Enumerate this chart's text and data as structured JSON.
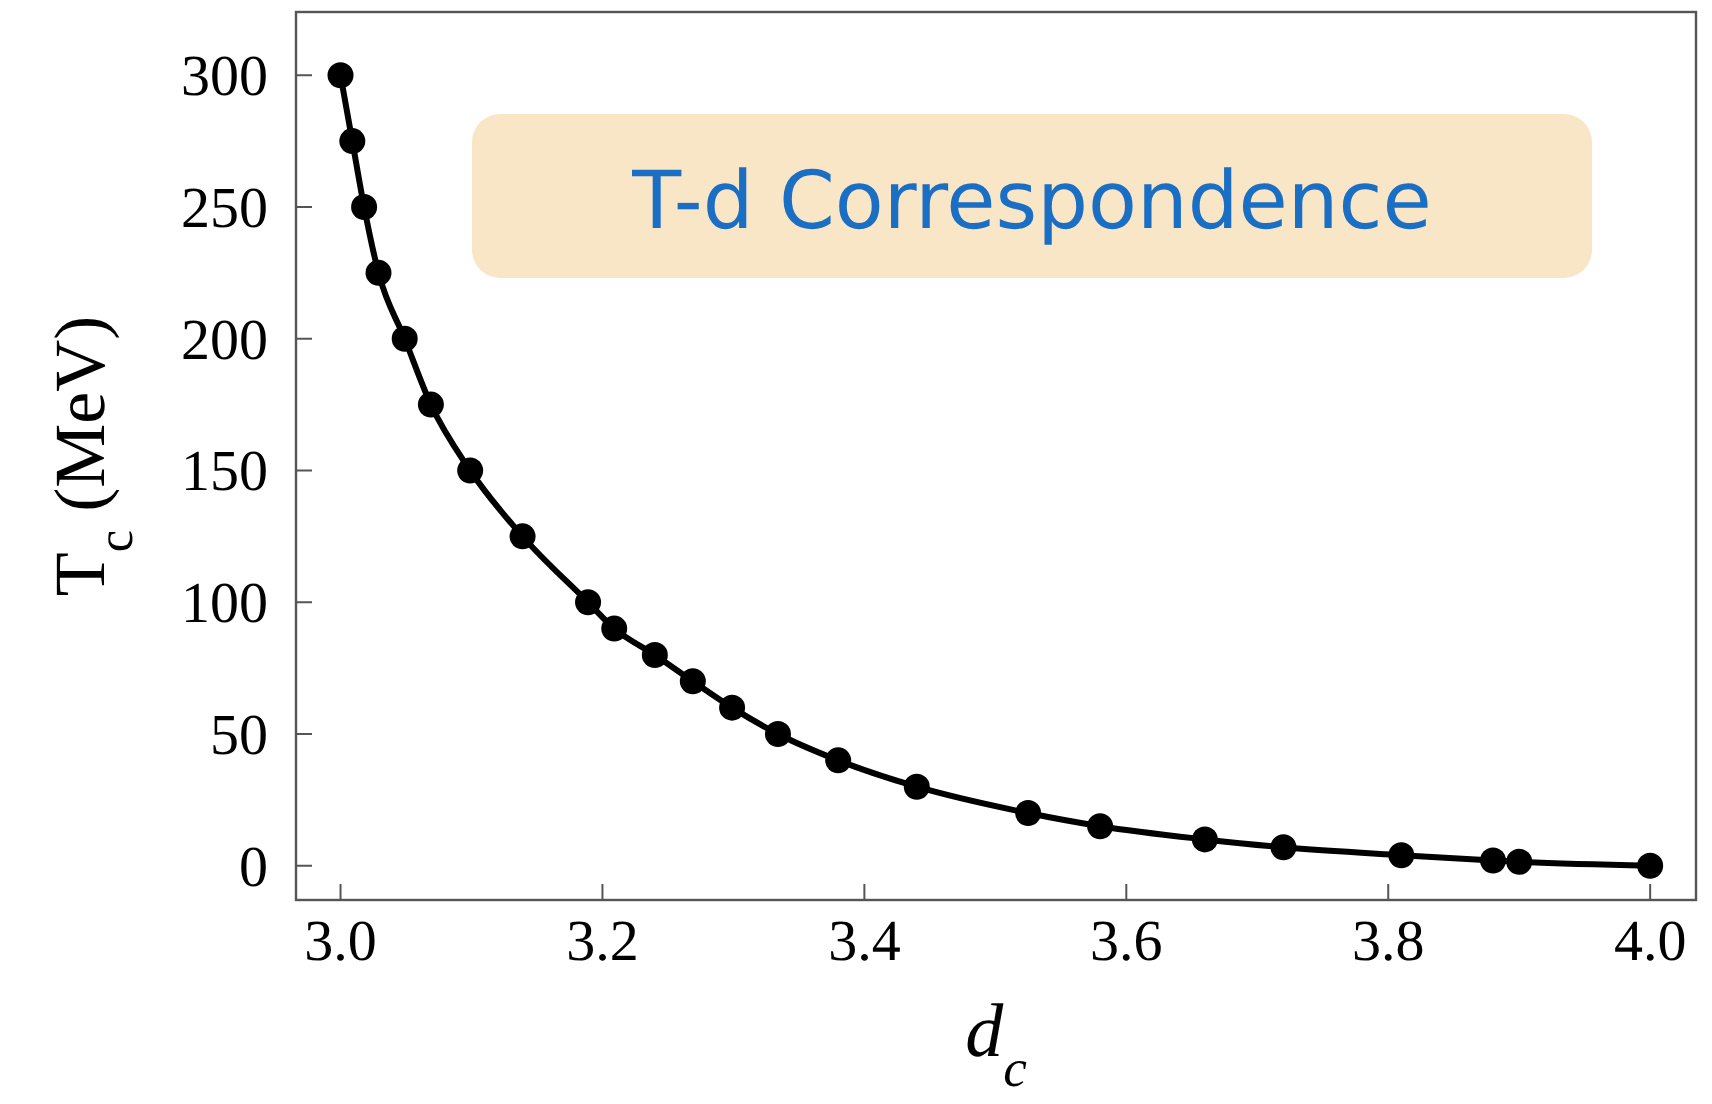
{
  "chart_data": {
    "type": "line",
    "xlabel": "d$_{c}$",
    "ylabel": "T$_{c}$ (MeV)",
    "annotations": [
      "T-d Correspondence"
    ],
    "x": [
      3.0,
      3.009,
      3.018,
      3.029,
      3.049,
      3.069,
      3.099,
      3.139,
      3.189,
      3.209,
      3.24,
      3.269,
      3.299,
      3.334,
      3.38,
      3.44,
      3.525,
      3.58,
      3.66,
      3.72,
      3.81,
      3.88,
      3.9,
      4.0
    ],
    "series": [
      {
        "color": "#000000",
        "values": [
          300,
          275,
          250,
          225,
          200,
          175,
          150,
          125,
          100,
          90,
          80,
          70,
          60,
          50,
          40,
          30,
          20,
          15,
          10,
          7,
          4,
          2,
          1.5,
          0
        ]
      }
    ],
    "xlim": [
      2.966,
      4.035
    ],
    "ylim": [
      -13,
      324
    ],
    "xticks": [
      {
        "value": 3,
        "label": "3.0"
      },
      3.2,
      3.4,
      3.6,
      3.8,
      {
        "value": 4,
        "label": "4.0"
      }
    ],
    "yticks": [
      0,
      50,
      100,
      150,
      200,
      250,
      300
    ],
    "marker": "circle",
    "line_style": "solid",
    "grid": false
  }
}
